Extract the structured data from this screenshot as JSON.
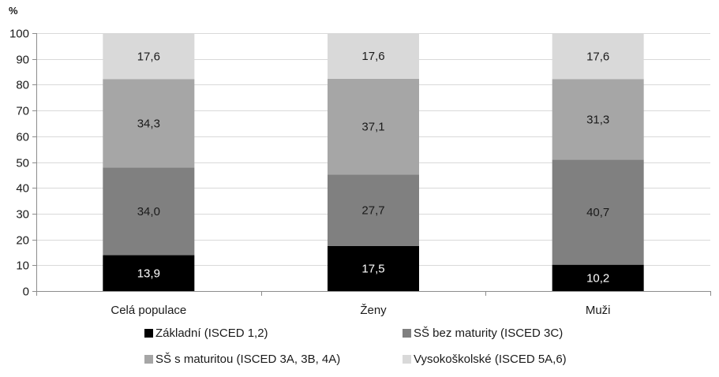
{
  "chart_data": {
    "type": "bar",
    "stacked": true,
    "ylabel": "%",
    "ylim": [
      0,
      100
    ],
    "yticks": [
      0,
      10,
      20,
      30,
      40,
      50,
      60,
      70,
      80,
      90,
      100
    ],
    "grid": true,
    "legend_position": "bottom",
    "categories": [
      "Celá populace",
      "Ženy",
      "Muži"
    ],
    "series": [
      {
        "name": "Základní (ISCED 1,2)",
        "color": "#000000",
        "label_color": "#ffffff",
        "values": [
          13.9,
          17.5,
          10.2
        ],
        "labels": [
          "13,9",
          "17,5",
          "10,2"
        ]
      },
      {
        "name": "SŠ bez maturity (ISCED 3C)",
        "color": "#808080",
        "label_color": "#1a1a1a",
        "values": [
          34.0,
          27.7,
          40.7
        ],
        "labels": [
          "34,0",
          "27,7",
          "40,7"
        ]
      },
      {
        "name": "SŠ s maturitou (ISCED 3A, 3B, 4A)",
        "color": "#a6a6a6",
        "label_color": "#1a1a1a",
        "values": [
          34.3,
          37.1,
          31.3
        ],
        "labels": [
          "34,3",
          "37,1",
          "31,3"
        ]
      },
      {
        "name": "Vysokoškolské (ISCED 5A,6)",
        "color": "#d9d9d9",
        "label_color": "#1a1a1a",
        "values": [
          17.6,
          17.6,
          17.6
        ],
        "labels": [
          "17,6",
          "17,6",
          "17,6"
        ]
      }
    ]
  }
}
